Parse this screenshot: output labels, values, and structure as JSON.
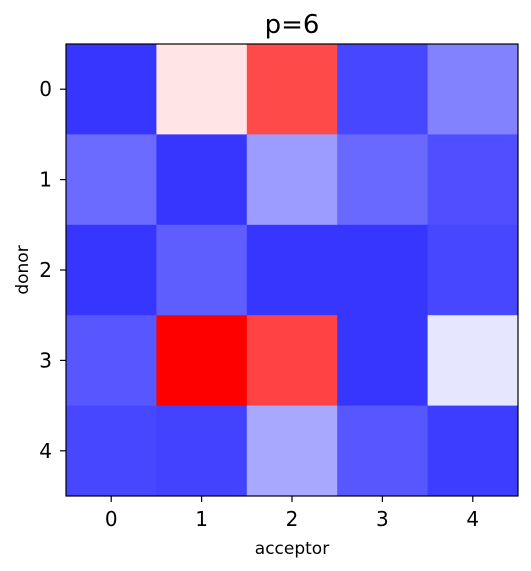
{
  "chart_data": {
    "type": "heatmap",
    "title": "p=6",
    "xlabel": "acceptor",
    "ylabel": "donor",
    "x_categories": [
      "0",
      "1",
      "2",
      "3",
      "4"
    ],
    "y_categories": [
      "0",
      "1",
      "2",
      "3",
      "4"
    ],
    "colormap": "bwr",
    "vmin": -1,
    "vmax": 1,
    "values": [
      [
        -0.79,
        0.1,
        0.71,
        -0.72,
        -0.49
      ],
      [
        -0.58,
        -0.79,
        -0.39,
        -0.59,
        -0.69
      ],
      [
        -0.79,
        -0.63,
        -0.79,
        -0.79,
        -0.72
      ],
      [
        -0.66,
        1.0,
        0.74,
        -0.79,
        -0.1
      ],
      [
        -0.72,
        -0.74,
        -0.34,
        -0.66,
        -0.76
      ]
    ],
    "grid": false,
    "legend": "none"
  }
}
